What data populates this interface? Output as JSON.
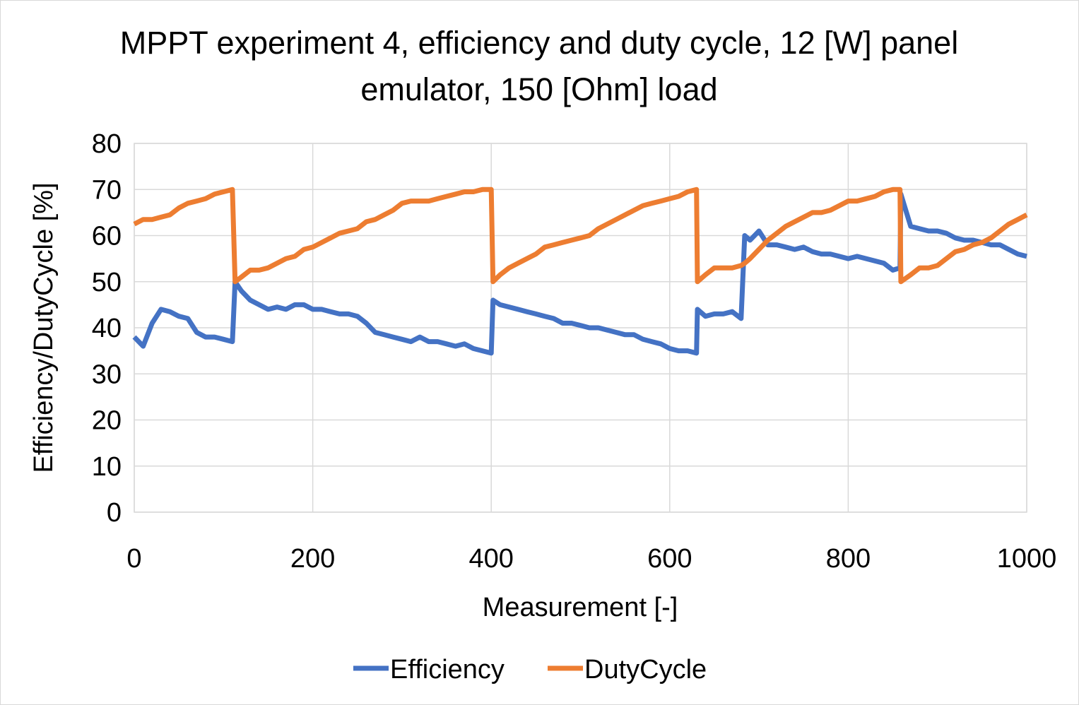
{
  "chart_data": {
    "type": "line",
    "title": "MPPT experiment 4, efficiency and duty cycle, 12 [W] panel emulator, 150 [Ohm] load",
    "x_label": "Measurement [-]",
    "y_label": "Efficiency/DutyCycle [%]",
    "x": [
      0,
      10,
      20,
      30,
      40,
      50,
      60,
      70,
      80,
      90,
      100,
      110,
      113,
      120,
      130,
      140,
      150,
      160,
      170,
      180,
      190,
      200,
      210,
      220,
      230,
      240,
      250,
      260,
      270,
      280,
      290,
      300,
      310,
      320,
      330,
      340,
      350,
      360,
      370,
      380,
      390,
      400,
      402,
      410,
      420,
      430,
      440,
      450,
      460,
      470,
      480,
      490,
      500,
      510,
      520,
      530,
      540,
      550,
      560,
      570,
      580,
      590,
      600,
      610,
      620,
      630,
      631,
      640,
      650,
      660,
      670,
      680,
      684,
      690,
      700,
      710,
      720,
      730,
      740,
      750,
      760,
      770,
      780,
      790,
      800,
      810,
      820,
      830,
      840,
      850,
      858,
      859,
      870,
      880,
      890,
      900,
      910,
      920,
      930,
      940,
      950,
      960,
      970,
      980,
      990,
      1000
    ],
    "series": [
      {
        "name": "Efficiency",
        "color": "#4472c4",
        "values": [
          38,
          36,
          41,
          44,
          43.5,
          42.5,
          42,
          39,
          38,
          38,
          37.5,
          37,
          50,
          48,
          46,
          45,
          44,
          44.5,
          44,
          45,
          45,
          44,
          44,
          43.5,
          43,
          43,
          42.5,
          41,
          39,
          38.5,
          38,
          37.5,
          37,
          38,
          37,
          37,
          36.5,
          36,
          36.5,
          35.5,
          35,
          34.5,
          46,
          45,
          44.5,
          44,
          43.5,
          43,
          42.5,
          42,
          41,
          41,
          40.5,
          40,
          40,
          39.5,
          39,
          38.5,
          38.5,
          37.5,
          37,
          36.5,
          35.5,
          35,
          35,
          34.5,
          44,
          42.5,
          43,
          43,
          43.5,
          42,
          60,
          59,
          61,
          58,
          58,
          57.5,
          57,
          57.5,
          56.5,
          56,
          56,
          55.5,
          55,
          55.5,
          55,
          54.5,
          54,
          52.5,
          53,
          69,
          62,
          61.5,
          61,
          61,
          60.5,
          59.5,
          59,
          59,
          58.5,
          58,
          58,
          57,
          56,
          55.5
        ]
      },
      {
        "name": "DutyCycle",
        "color": "#ed7d31",
        "values": [
          62.5,
          63.5,
          63.5,
          64,
          64.5,
          66,
          67,
          67.5,
          68,
          69,
          69.5,
          70,
          50,
          51,
          52.5,
          52.5,
          53,
          54,
          55,
          55.5,
          57,
          57.5,
          58.5,
          59.5,
          60.5,
          61,
          61.5,
          63,
          63.5,
          64.5,
          65.5,
          67,
          67.5,
          67.5,
          67.5,
          68,
          68.5,
          69,
          69.5,
          69.5,
          70,
          70,
          50,
          51.5,
          53,
          54,
          55,
          56,
          57.5,
          58,
          58.5,
          59,
          59.5,
          60,
          61.5,
          62.5,
          63.5,
          64.5,
          65.5,
          66.5,
          67,
          67.5,
          68,
          68.5,
          69.5,
          70,
          50,
          51.5,
          53,
          53,
          53,
          53.5,
          54,
          55,
          57,
          59,
          60.5,
          62,
          63,
          64,
          65,
          65,
          65.5,
          66.5,
          67.5,
          67.5,
          68,
          68.5,
          69.5,
          70,
          70,
          50,
          51.5,
          53,
          53,
          53.5,
          55,
          56.5,
          57,
          58,
          58.5,
          59.5,
          61,
          62.5,
          63.5,
          64.5
        ]
      }
    ],
    "xlim": [
      0,
      1000
    ],
    "xticks": [
      0,
      200,
      400,
      600,
      800,
      1000
    ],
    "ylim": [
      0,
      80
    ],
    "yticks": [
      0,
      10,
      20,
      30,
      40,
      50,
      60,
      70,
      80
    ],
    "grid": true,
    "legend": "bottom"
  }
}
